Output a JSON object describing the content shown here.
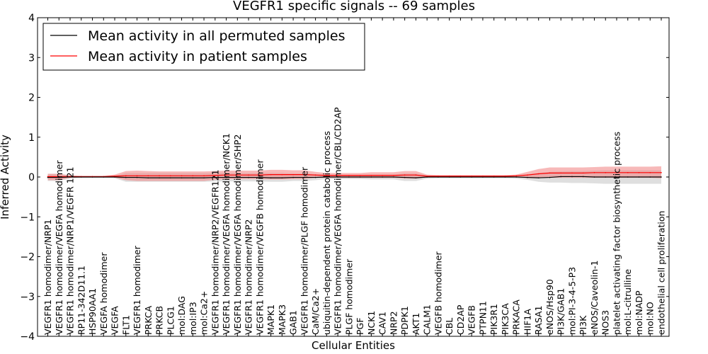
{
  "chart_data": {
    "type": "line",
    "title": "VEGFR1 specific signals -- 69 samples",
    "xlabel": "Cellular Entities",
    "ylabel": "Inferred Activity",
    "ylim": [
      -4,
      4
    ],
    "yticks": [
      "−4",
      "−3",
      "−2",
      "−1",
      "0",
      "1",
      "2",
      "3",
      "4"
    ],
    "grid": false,
    "legend_position": "top-left",
    "categories": [
      "VEGFR1 homodimer/NRP1",
      "VEGFR1 homodimer/VEGFA homodimer",
      "VEGFR1 homodimer/NRP1/VEGFR 121",
      "RP11-342D11.1",
      "HSP90AA1",
      "VEGFA homodimer",
      "VEGFA",
      "FLT1",
      "VEGFR1 homodimer",
      "PRKCA",
      "PRKCB",
      "PLCG1",
      "mol:DAG",
      "mol:IP3",
      "mol:Ca2+",
      "VEGFR1 homodimer/NRP2/VEGFR121",
      "VEGFR1 homodimer/VEGFA homodimer/NCK1",
      "VEGFR1 homodimer/VEGFA homodimer/SHP2",
      "VEGFR1 homodimer/NRP2",
      "VEGFR1 homodimer/VEGFB homodimer",
      "MAPK1",
      "MAPK3",
      "GAB1",
      "VEGFR1 homodimer/PLGF homodimer",
      "CaM/Ca2+",
      "ubiquitin-dependent protein catabolic process",
      "VEGFR1 homodimer/VEGFA homodimer/CBL/CD2AP",
      "PLGF homodimer",
      "PGF",
      "NCK1",
      "CAV1",
      "NRP2",
      "PDPK1",
      "AKT1",
      "CALM1",
      "VEGFB homodimer",
      "CBL",
      "CD2AP",
      "VEGFB",
      "PTPN11",
      "PIK3R1",
      "PIK3CA",
      "PRKACA",
      "HIF1A",
      "RASA1",
      "eNOS/Hsp90",
      "PI3K/GAB1",
      "mol:PI-3-4-5-P3",
      "PI3K",
      "eNOS/Caveolin-1",
      "NOS3",
      "platelet activating factor biosynthetic process",
      "mol:L-citrulline",
      "mol:NADP",
      "mol:NO",
      "endothelial cell proliferation"
    ],
    "series": [
      {
        "name": "Mean activity in all permuted samples",
        "color": "#000000",
        "band_color": "#b8b8b8",
        "values": [
          -0.01,
          -0.01,
          0,
          0,
          0,
          0,
          0,
          -0.01,
          -0.01,
          -0.02,
          -0.02,
          -0.02,
          -0.02,
          -0.02,
          -0.02,
          -0.01,
          -0.01,
          -0.01,
          -0.01,
          -0.01,
          -0.02,
          -0.02,
          -0.01,
          -0.01,
          -0.01,
          0,
          0,
          0,
          0,
          0,
          0,
          0,
          -0.01,
          -0.02,
          0,
          0,
          0,
          0,
          0,
          0,
          0,
          0,
          0,
          -0.01,
          -0.02,
          -0.01,
          0.01,
          0.01,
          0.01,
          0,
          0,
          0,
          0,
          0,
          0,
          0
        ],
        "lower": [
          -0.1,
          -0.1,
          -0.04,
          -0.02,
          -0.02,
          -0.02,
          -0.03,
          -0.12,
          -0.12,
          -0.12,
          -0.12,
          -0.12,
          -0.12,
          -0.12,
          -0.12,
          -0.11,
          -0.11,
          -0.11,
          -0.11,
          -0.11,
          -0.12,
          -0.12,
          -0.1,
          -0.1,
          -0.08,
          -0.05,
          -0.05,
          -0.05,
          -0.05,
          -0.06,
          -0.06,
          -0.06,
          -0.1,
          -0.1,
          -0.04,
          -0.03,
          -0.03,
          -0.03,
          -0.03,
          -0.03,
          -0.03,
          -0.03,
          -0.04,
          -0.07,
          -0.12,
          -0.14,
          -0.14,
          -0.15,
          -0.15,
          -0.16,
          -0.17,
          -0.17,
          -0.17,
          -0.17,
          -0.17,
          -0.17
        ],
        "upper": [
          0.08,
          0.08,
          0.04,
          0.02,
          0.02,
          0.02,
          0.03,
          0.1,
          0.1,
          0.1,
          0.1,
          0.1,
          0.1,
          0.1,
          0.1,
          0.1,
          0.1,
          0.1,
          0.1,
          0.1,
          0.1,
          0.1,
          0.09,
          0.09,
          0.07,
          0.05,
          0.05,
          0.05,
          0.05,
          0.06,
          0.06,
          0.06,
          0.09,
          0.09,
          0.04,
          0.03,
          0.03,
          0.03,
          0.03,
          0.03,
          0.03,
          0.03,
          0.04,
          0.07,
          0.1,
          0.13,
          0.14,
          0.15,
          0.15,
          0.16,
          0.17,
          0.17,
          0.17,
          0.17,
          0.17,
          0.17
        ]
      },
      {
        "name": "Mean activity in patient samples",
        "color": "#ff0000",
        "band_color": "#f08080",
        "values": [
          0.01,
          0.01,
          0.01,
          0.01,
          0.01,
          0.01,
          0.02,
          0.03,
          0.03,
          0.03,
          0.03,
          0.03,
          0.03,
          0.03,
          0.03,
          0.04,
          0.05,
          0.05,
          0.05,
          0.05,
          0.06,
          0.06,
          0.06,
          0.06,
          0.05,
          0.04,
          0.04,
          0.04,
          0.04,
          0.04,
          0.04,
          0.04,
          0.05,
          0.05,
          0.02,
          0.02,
          0.02,
          0.02,
          0.02,
          0.02,
          0.02,
          0.02,
          0.03,
          0.05,
          0.08,
          0.1,
          0.1,
          0.1,
          0.1,
          0.11,
          0.11,
          0.11,
          0.11,
          0.11,
          0.11,
          0.11
        ],
        "lower": [
          -0.08,
          -0.08,
          -0.02,
          -0.01,
          -0.01,
          -0.01,
          -0.01,
          -0.08,
          -0.1,
          -0.1,
          -0.1,
          -0.1,
          -0.1,
          -0.1,
          -0.1,
          -0.07,
          -0.05,
          -0.05,
          -0.05,
          -0.05,
          -0.06,
          -0.06,
          -0.05,
          -0.05,
          -0.02,
          -0.02,
          -0.02,
          -0.02,
          -0.02,
          -0.02,
          -0.02,
          -0.02,
          -0.04,
          -0.04,
          0,
          0,
          0,
          0,
          0,
          0,
          0,
          0,
          0,
          -0.03,
          -0.03,
          -0.02,
          -0.02,
          -0.02,
          -0.02,
          -0.02,
          -0.02,
          -0.02,
          -0.02,
          -0.02,
          -0.02,
          -0.03
        ],
        "upper": [
          0.08,
          0.08,
          0.04,
          0.03,
          0.03,
          0.03,
          0.06,
          0.15,
          0.16,
          0.15,
          0.14,
          0.14,
          0.14,
          0.14,
          0.14,
          0.15,
          0.16,
          0.16,
          0.16,
          0.16,
          0.18,
          0.18,
          0.17,
          0.17,
          0.13,
          0.1,
          0.1,
          0.1,
          0.1,
          0.12,
          0.12,
          0.12,
          0.15,
          0.15,
          0.06,
          0.05,
          0.05,
          0.05,
          0.05,
          0.05,
          0.05,
          0.05,
          0.06,
          0.13,
          0.2,
          0.24,
          0.24,
          0.24,
          0.24,
          0.25,
          0.26,
          0.26,
          0.26,
          0.26,
          0.26,
          0.27
        ]
      }
    ]
  }
}
